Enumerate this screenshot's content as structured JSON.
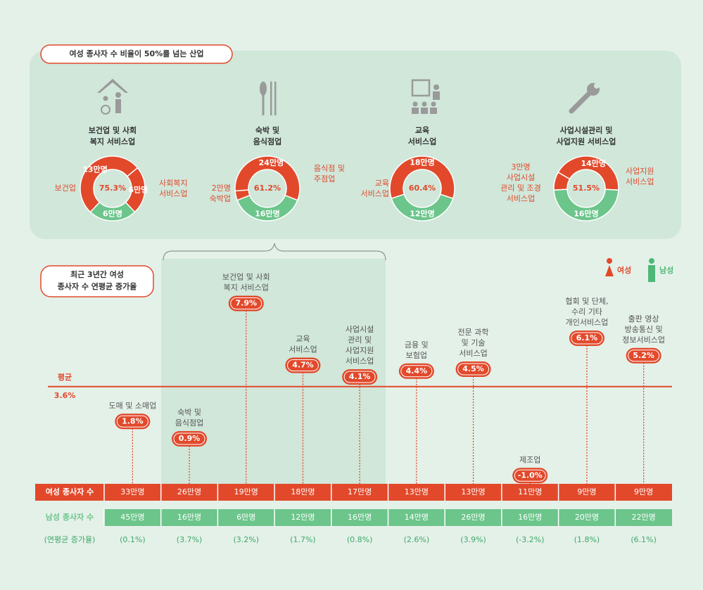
{
  "header": {
    "title": "여성 종사자 수 비율이 50%를 넘는 산업"
  },
  "chart_data": [
    {
      "type": "donut",
      "title": [
        "보건업 및 사회",
        "복지 서비스업"
      ],
      "share": 75.3,
      "share_label": "75.3%",
      "segments": [
        {
          "name": [
            "보건업"
          ],
          "value": 13,
          "value_label": "13만명",
          "color": "#e2492b"
        },
        {
          "name": [
            "사회복지",
            "서비스업"
          ],
          "value": 6,
          "value_label": "6만명",
          "color": "#e2492b"
        },
        {
          "value": 6,
          "value_label": "6만명",
          "color": "#6cc58b"
        }
      ]
    },
    {
      "type": "donut",
      "title": [
        "숙박 및",
        "음식점업"
      ],
      "share": 61.2,
      "share_label": "61.2%",
      "segments": [
        {
          "name": [
            "숙박업"
          ],
          "value": 2,
          "value_label": "2만명",
          "color": "#e2492b"
        },
        {
          "name": [
            "음식점 및",
            "주점업"
          ],
          "value": 24,
          "value_label": "24만명",
          "color": "#e2492b"
        },
        {
          "value": 16,
          "value_label": "16만명",
          "color": "#6cc58b"
        }
      ]
    },
    {
      "type": "donut",
      "title": [
        "교육",
        "서비스업"
      ],
      "share": 60.4,
      "share_label": "60.4%",
      "segments": [
        {
          "name": [
            "교육",
            "서비스업"
          ],
          "value": 18,
          "value_label": "18만명",
          "color": "#e2492b"
        },
        {
          "value": 12,
          "value_label": "12만명",
          "color": "#6cc58b"
        }
      ]
    },
    {
      "type": "donut",
      "title": [
        "사업시설관리 및",
        "사업지원 서비스업"
      ],
      "share": 51.5,
      "share_label": "51.5%",
      "segments": [
        {
          "name": [
            "사업시설",
            "관리 및 조경",
            "서비스업"
          ],
          "value": 3,
          "value_label": "3만명",
          "color": "#e2492b"
        },
        {
          "name": [
            "사업지원",
            "서비스업"
          ],
          "value": 14,
          "value_label": "14만명",
          "color": "#e2492b"
        },
        {
          "value": 16,
          "value_label": "16만명",
          "color": "#6cc58b"
        }
      ]
    },
    {
      "type": "lollipop",
      "title": [
        "최근 3년간 여성",
        "종사자 수 연평균 증가율"
      ],
      "categories": [
        [
          "도매 및 소매업"
        ],
        [
          "숙박 및",
          "음식점업"
        ],
        [
          "보건업 및 사회",
          "복지 서비스업"
        ],
        [
          "교육",
          "서비스업"
        ],
        [
          "사업시설",
          "관리 및",
          "사업지원",
          "서비스업"
        ],
        [
          "금융 및",
          "보험업"
        ],
        [
          "전문 과학",
          "및 기술",
          "서비스업"
        ],
        [
          "제조업"
        ],
        [
          "협회 및 단체,",
          "수리 기타",
          "개인서비스업"
        ],
        [
          "출판 영상",
          "방송통신 및",
          "정보서비스업"
        ]
      ],
      "values": [
        1.8,
        0.9,
        7.9,
        4.7,
        4.1,
        4.4,
        4.5,
        -1.0,
        6.1,
        5.2
      ],
      "value_labels": [
        "1.8%",
        "0.9%",
        "7.9%",
        "4.7%",
        "4.1%",
        "4.4%",
        "4.5%",
        "-1.0%",
        "6.1%",
        "5.2%"
      ],
      "color": "#e2492b",
      "ylim": [
        -1.5,
        8.5
      ],
      "average": 3.6,
      "average_label": "3.6%",
      "average_title": "평균",
      "legend": [
        {
          "name": "여성",
          "color": "#e2492b"
        },
        {
          "name": "남성",
          "color": "#4fb877"
        }
      ],
      "table": {
        "rows": [
          {
            "name": "여성 종사자 수",
            "color": "#e2492b",
            "values": [
              33,
              26,
              19,
              18,
              17,
              13,
              13,
              11,
              9,
              9
            ],
            "value_labels": [
              "33만명",
              "26만명",
              "19만명",
              "18만명",
              "17만명",
              "13만명",
              "13만명",
              "11만명",
              "9만명",
              "9만명"
            ]
          },
          {
            "name": "남성 종사자 수",
            "color": "#6cc58b",
            "values": [
              45,
              16,
              6,
              12,
              16,
              14,
              26,
              16,
              20,
              22
            ],
            "value_labels": [
              "45만명",
              "16만명",
              "6만명",
              "12만명",
              "16만명",
              "14만명",
              "26만명",
              "16만명",
              "20만명",
              "22만명"
            ]
          },
          {
            "name": "(연평균 증가율)",
            "color": "#3fa868",
            "values": [
              0.1,
              3.7,
              3.2,
              1.7,
              0.8,
              2.6,
              3.9,
              -3.2,
              1.8,
              6.1
            ],
            "value_labels": [
              "(0.1%)",
              "(3.7%)",
              "(3.2%)",
              "(1.7%)",
              "(0.8%)",
              "(2.6%)",
              "(3.9%)",
              "(-3.2%)",
              "(1.8%)",
              "(6.1%)"
            ]
          }
        ]
      }
    }
  ]
}
